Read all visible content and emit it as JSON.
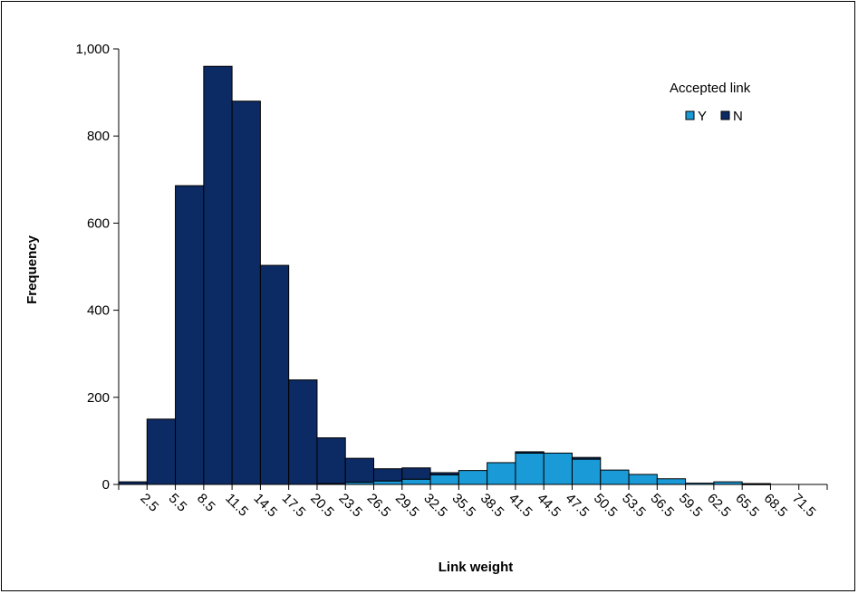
{
  "chart_data": {
    "type": "bar",
    "stacked": true,
    "xlabel": "Link weight",
    "ylabel": "Frequency",
    "ylim": [
      0,
      1000
    ],
    "yticks": [
      0,
      200,
      400,
      600,
      800,
      1000
    ],
    "ytick_labels": [
      "0",
      "200",
      "400",
      "600",
      "800",
      "1,000"
    ],
    "bin_width": 3,
    "bin_start": -0.5,
    "xtick_values": [
      2.5,
      5.5,
      8.5,
      11.5,
      14.5,
      17.5,
      20.5,
      23.5,
      26.5,
      29.5,
      32.5,
      35.5,
      38.5,
      41.5,
      44.5,
      47.5,
      50.5,
      53.5,
      56.5,
      59.5,
      62.5,
      65.5,
      68.5,
      71.5
    ],
    "xtick_labels": [
      "2.5",
      "5.5",
      "8.5",
      "11.5",
      "14.5",
      "17.5",
      "20.5",
      "23.5",
      "26.5",
      "29.5",
      "32.5",
      "35.5",
      "38.5",
      "41.5",
      "44.5",
      "47.5",
      "50.5",
      "53.5",
      "56.5",
      "59.5",
      "62.5",
      "65.5",
      "68.5",
      "71.5"
    ],
    "legend": {
      "title": "Accepted link",
      "position": "top-right"
    },
    "series": [
      {
        "name": "Y",
        "color": "#1a9ad6",
        "values": [
          0,
          0,
          0,
          0,
          0,
          0,
          0,
          2,
          5,
          8,
          12,
          22,
          32,
          50,
          72,
          72,
          58,
          33,
          23,
          13,
          3,
          6,
          1,
          0,
          0
        ]
      },
      {
        "name": "N",
        "color": "#0c2a63",
        "values": [
          6,
          150,
          686,
          960,
          880,
          503,
          240,
          105,
          55,
          28,
          26,
          5,
          0,
          0,
          3,
          0,
          4,
          0,
          0,
          0,
          0,
          0,
          1,
          0,
          0
        ]
      }
    ]
  }
}
